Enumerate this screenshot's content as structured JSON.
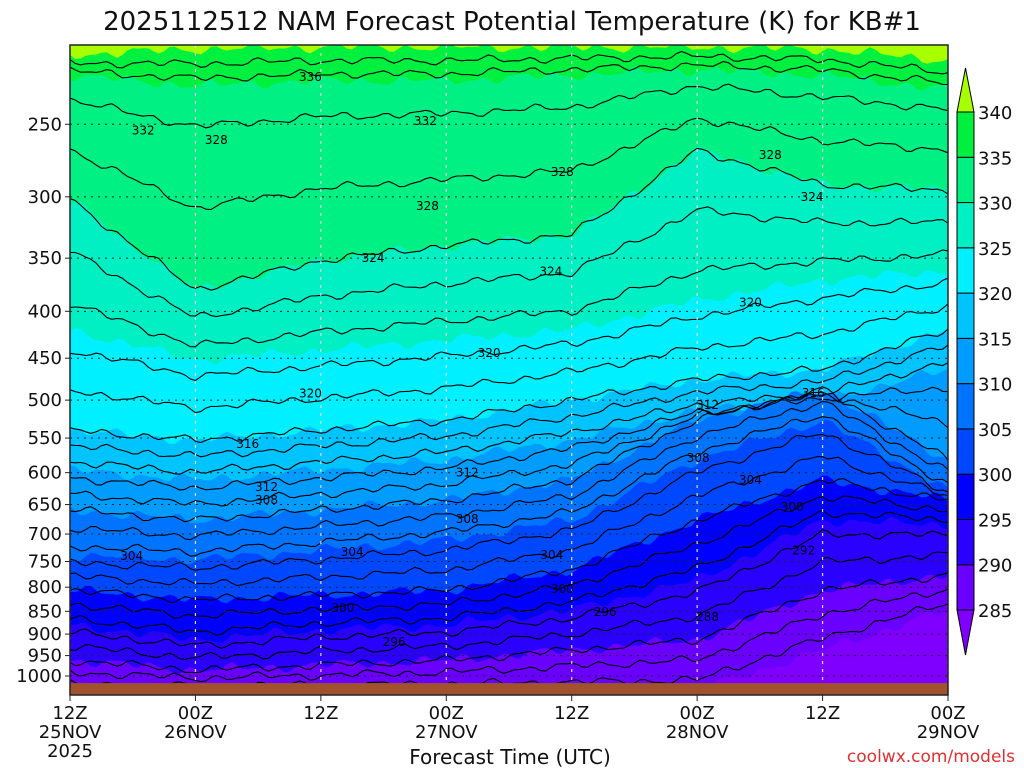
{
  "chart_data": {
    "type": "contour",
    "title": "2025112512 NAM Forecast Potential Temperature (K) for KB#1",
    "xlabel": "Forecast Time (UTC)",
    "ylabel": "",
    "watermark": "coolwx.com/models",
    "xlim_hours": [
      0,
      84
    ],
    "ylim_hPa": [
      1049,
      206
    ],
    "y_scale": "log",
    "grid": true,
    "x_ticks": [
      {
        "hours": 0,
        "lines": [
          "12Z",
          "25NOV",
          "2025"
        ]
      },
      {
        "hours": 12,
        "lines": [
          "00Z",
          "26NOV"
        ]
      },
      {
        "hours": 24,
        "lines": [
          "12Z"
        ]
      },
      {
        "hours": 36,
        "lines": [
          "00Z",
          "27NOV"
        ]
      },
      {
        "hours": 48,
        "lines": [
          "12Z"
        ]
      },
      {
        "hours": 60,
        "lines": [
          "00Z",
          "28NOV"
        ]
      },
      {
        "hours": 72,
        "lines": [
          "12Z"
        ]
      },
      {
        "hours": 84,
        "lines": [
          "00Z",
          "29NOV"
        ]
      }
    ],
    "y_ticks": [
      250,
      300,
      350,
      400,
      450,
      500,
      550,
      600,
      650,
      700,
      750,
      800,
      850,
      900,
      950,
      1000
    ],
    "ground_pressure_hPa": 1018,
    "isentrope_pressure_hPa": {
      "times_h": [
        0,
        12,
        24,
        36,
        48,
        60,
        72,
        84
      ],
      "levels": [
        {
          "theta": 340,
          "p": [
            210,
            207,
            206,
            206,
            206,
            206,
            207,
            213
          ]
        },
        {
          "theta": 335,
          "p": [
            221,
            227,
            224,
            224,
            221,
            218,
            221,
            229
          ]
        },
        {
          "theta": 330,
          "p": [
            302,
            379,
            352,
            339,
            330,
            267,
            291,
            295
          ]
        },
        {
          "theta": 325,
          "p": [
            419,
            452,
            441,
            430,
            419,
            389,
            370,
            361
          ]
        },
        {
          "theta": 320,
          "p": [
            539,
            553,
            539,
            526,
            500,
            475,
            463,
            419
          ]
        },
        {
          "theta": 315,
          "p": [
            596,
            611,
            596,
            581,
            553,
            513,
            500,
            463
          ]
        },
        {
          "theta": 310,
          "p": [
            659,
            676,
            659,
            643,
            611,
            526,
            487,
            581
          ]
        },
        {
          "theta": 305,
          "p": [
            738,
            747,
            729,
            711,
            676,
            581,
            526,
            627
          ]
        },
        {
          "theta": 300,
          "p": [
            806,
            826,
            816,
            806,
            766,
            676,
            611,
            643
          ]
        },
        {
          "theta": 295,
          "p": [
            880,
            913,
            891,
            880,
            847,
            786,
            676,
            684
          ]
        },
        {
          "theta": 290,
          "p": [
            961,
            985,
            973,
            961,
            937,
            913,
            806,
            776
          ]
        },
        {
          "theta": 285,
          "p": [
            1036,
            1036,
            1036,
            1036,
            1036,
            1036,
            937,
            847
          ]
        }
      ]
    },
    "contour_interval_K": 2,
    "contour_labels": [
      {
        "value": "336",
        "t": 23.0,
        "p": 222
      },
      {
        "value": "332",
        "t": 7.0,
        "p": 254
      },
      {
        "value": "328",
        "t": 14.0,
        "p": 260
      },
      {
        "value": "332",
        "t": 34.0,
        "p": 248
      },
      {
        "value": "328",
        "t": 34.2,
        "p": 307
      },
      {
        "value": "328",
        "t": 47.1,
        "p": 282
      },
      {
        "value": "328",
        "t": 67.0,
        "p": 270
      },
      {
        "value": "324",
        "t": 71.0,
        "p": 300
      },
      {
        "value": "324",
        "t": 29.0,
        "p": 350
      },
      {
        "value": "324",
        "t": 46.0,
        "p": 362
      },
      {
        "value": "320",
        "t": 65.1,
        "p": 391
      },
      {
        "value": "320",
        "t": 40.1,
        "p": 444
      },
      {
        "value": "320",
        "t": 23.0,
        "p": 492
      },
      {
        "value": "316",
        "t": 71.1,
        "p": 491
      },
      {
        "value": "316",
        "t": 17.0,
        "p": 558
      },
      {
        "value": "312",
        "t": 61.0,
        "p": 506
      },
      {
        "value": "312",
        "t": 18.8,
        "p": 622
      },
      {
        "value": "312",
        "t": 38.0,
        "p": 600
      },
      {
        "value": "308",
        "t": 18.8,
        "p": 643
      },
      {
        "value": "308",
        "t": 60.1,
        "p": 578
      },
      {
        "value": "308",
        "t": 38.0,
        "p": 674
      },
      {
        "value": "304",
        "t": 65.1,
        "p": 611
      },
      {
        "value": "304",
        "t": 5.9,
        "p": 740
      },
      {
        "value": "304",
        "t": 27.0,
        "p": 732
      },
      {
        "value": "304",
        "t": 46.1,
        "p": 738
      },
      {
        "value": "300",
        "t": 69.1,
        "p": 654
      },
      {
        "value": "300",
        "t": 47.1,
        "p": 804
      },
      {
        "value": "300",
        "t": 26.1,
        "p": 843
      },
      {
        "value": "296",
        "t": 51.2,
        "p": 851
      },
      {
        "value": "296",
        "t": 31.0,
        "p": 918
      },
      {
        "value": "292",
        "t": 70.2,
        "p": 730
      },
      {
        "value": "288",
        "t": 61.0,
        "p": 862
      }
    ],
    "colorbar": {
      "levels": [
        285,
        290,
        295,
        300,
        305,
        310,
        315,
        320,
        325,
        330,
        335,
        340
      ],
      "colors": [
        "#8000ff",
        "#6a00ff",
        "#2a00ff",
        "#0000ff",
        "#0048ff",
        "#0074ff",
        "#009cff",
        "#00c4ff",
        "#00f0ff",
        "#00f0c4",
        "#00f084",
        "#00f040",
        "#a8ff00"
      ]
    },
    "ground_color": "#a0522d"
  }
}
